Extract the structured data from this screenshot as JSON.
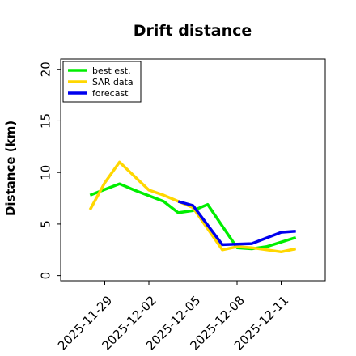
{
  "chart_data": {
    "type": "line",
    "title": "Drift distance",
    "xlabel": "",
    "ylabel": "Distance (km)",
    "ylim": [
      -0.5,
      21
    ],
    "xlim": [
      "2025-11-26",
      "2025-12-14"
    ],
    "y_ticks": [
      0,
      5,
      10,
      15,
      20
    ],
    "y_tick_labels": [
      "0",
      "5",
      "10",
      "15",
      "20"
    ],
    "x_ticks": [
      "2025-11-29",
      "2025-12-02",
      "2025-12-05",
      "2025-12-08",
      "2025-12-11"
    ],
    "x_tick_labels": [
      "2025-11-29",
      "2025-12-02",
      "2025-12-05",
      "2025-12-08",
      "2025-12-11"
    ],
    "grid": false,
    "legend_position": "top-left",
    "series": [
      {
        "name": "best est.",
        "color": "#00ee00",
        "x": [
          "2025-11-28",
          "2025-11-30",
          "2025-12-01",
          "2025-12-03",
          "2025-12-04",
          "2025-12-05",
          "2025-12-06",
          "2025-12-07",
          "2025-12-08",
          "2025-12-09",
          "2025-12-10",
          "2025-12-12"
        ],
        "y": [
          7.8,
          8.9,
          8.3,
          7.2,
          6.1,
          6.3,
          6.9,
          4.8,
          2.7,
          2.6,
          2.8,
          3.7
        ]
      },
      {
        "name": "SAR data",
        "color": "#ffd700",
        "x": [
          "2025-11-28",
          "2025-11-29",
          "2025-11-30",
          "2025-12-02",
          "2025-12-03",
          "2025-12-05",
          "2025-12-07",
          "2025-12-08",
          "2025-12-09",
          "2025-12-11",
          "2025-12-12"
        ],
        "y": [
          6.4,
          9.0,
          11.0,
          8.3,
          7.8,
          6.6,
          2.5,
          2.8,
          2.7,
          2.3,
          2.6
        ]
      },
      {
        "name": "forecast",
        "color": "#0000ee",
        "x": [
          "2025-12-04",
          "2025-12-05",
          "2025-12-07",
          "2025-12-09",
          "2025-12-11",
          "2025-12-12"
        ],
        "y": [
          7.2,
          6.8,
          3.0,
          3.1,
          4.2,
          4.3
        ]
      }
    ]
  }
}
